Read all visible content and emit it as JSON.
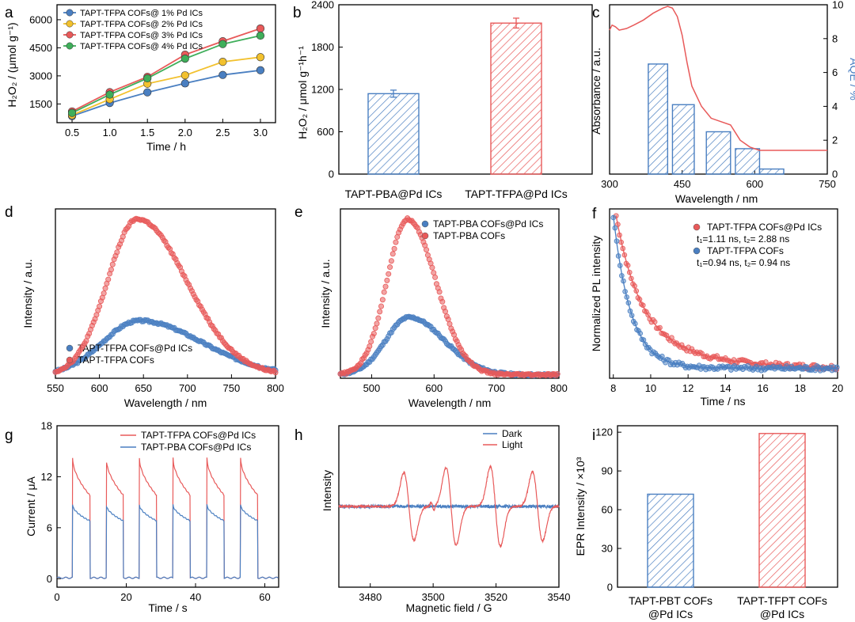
{
  "colors": {
    "blue": "#4a7fc1",
    "red": "#e85a5a",
    "yellow": "#f2c12e",
    "green": "#3fae5a"
  },
  "chart_data": [
    {
      "id": "a",
      "panel": "a",
      "type": "line",
      "xlabel": "Time / h",
      "ylabel": "H₂O₂ / (μmol g⁻¹)",
      "xlim": [
        0.3,
        3.2
      ],
      "ylim": [
        500,
        6800
      ],
      "xticks": [
        "0.5",
        "1.0",
        "1.5",
        "2.0",
        "2.5",
        "3.0"
      ],
      "xtick_vals": [
        0.5,
        1.0,
        1.5,
        2.0,
        2.5,
        3.0
      ],
      "yticks": [
        "1500",
        "3000",
        "4500",
        "6000"
      ],
      "ytick_vals": [
        1500,
        3000,
        4500,
        6000
      ],
      "x": [
        0.5,
        1.0,
        1.5,
        2.0,
        2.5,
        3.0
      ],
      "series": [
        {
          "name": "TAPT-TFPA COFs@ 1% Pd ICs",
          "color": "#4a7fc1",
          "values": [
            850,
            1550,
            2120,
            2600,
            3050,
            3300
          ]
        },
        {
          "name": "TAPT-TFPA COFs@ 2% Pd ICs",
          "color": "#f2c12e",
          "values": [
            900,
            1750,
            2580,
            3030,
            3750,
            4000
          ]
        },
        {
          "name": "TAPT-TFPA COFs@ 3% Pd ICs",
          "color": "#e85a5a",
          "values": [
            1100,
            2130,
            2950,
            4130,
            4850,
            5530
          ]
        },
        {
          "name": "TAPT-TFPA COFs@ 4% Pd ICs",
          "color": "#3fae5a",
          "values": [
            1020,
            2000,
            2870,
            3920,
            4700,
            5150
          ]
        }
      ]
    },
    {
      "id": "b",
      "panel": "b",
      "type": "bar",
      "ylabel": "H₂O₂ / μmol g⁻¹h⁻¹",
      "ylim": [
        0,
        2400
      ],
      "yticks": [
        "0",
        "600",
        "1200",
        "1800",
        "2400"
      ],
      "ytick_vals": [
        0,
        600,
        1200,
        1800,
        2400
      ],
      "categories": [
        "TAPT-PBA@Pd ICs",
        "TAPT-TFPA@Pd ICs"
      ],
      "values": [
        1140,
        2140
      ],
      "errors": [
        50,
        70
      ],
      "colors": [
        "#4a7fc1",
        "#e85a5a"
      ]
    },
    {
      "id": "c",
      "panel": "c",
      "type": "bar",
      "xlabel": "Wavelength / nm",
      "ylabel": "Absorbance / a.u.",
      "ylabel2": "AQE / %",
      "xlim": [
        300,
        750
      ],
      "ylim2": [
        0,
        10
      ],
      "xticks": [
        "300",
        "450",
        "600",
        "750"
      ],
      "xtick_vals": [
        300,
        450,
        600,
        750
      ],
      "yticks2": [
        "0",
        "2",
        "4",
        "6",
        "8",
        "10"
      ],
      "ytick_vals2": [
        0,
        2,
        4,
        6,
        8,
        10
      ],
      "bars": [
        {
          "x0": 380,
          "x1": 420,
          "value": 6.5
        },
        {
          "x0": 430,
          "x1": 475,
          "value": 4.1
        },
        {
          "x0": 500,
          "x1": 550,
          "value": 2.5
        },
        {
          "x0": 560,
          "x1": 610,
          "value": 1.5
        },
        {
          "x0": 610,
          "x1": 660,
          "value": 0.3
        }
      ],
      "absorbance": {
        "x": [
          300,
          305,
          312,
          320,
          335,
          350,
          370,
          390,
          410,
          420,
          430,
          440,
          450,
          460,
          470,
          490,
          510,
          530,
          550,
          570,
          590,
          610,
          650,
          700,
          750
        ],
        "y": [
          0.85,
          0.88,
          0.87,
          0.85,
          0.86,
          0.88,
          0.91,
          0.95,
          0.98,
          0.99,
          0.98,
          0.93,
          0.82,
          0.66,
          0.52,
          0.4,
          0.33,
          0.31,
          0.29,
          0.2,
          0.16,
          0.14,
          0.14,
          0.14,
          0.14
        ]
      }
    },
    {
      "id": "d",
      "panel": "d",
      "type": "scatter",
      "xlabel": "Wavelength / nm",
      "ylabel": "Intensity  / a.u.",
      "xlim": [
        550,
        800
      ],
      "xticks": [
        "550",
        "600",
        "650",
        "700",
        "750",
        "800"
      ],
      "xtick_vals": [
        550,
        600,
        650,
        700,
        750,
        800
      ],
      "series": [
        {
          "name": "TAPT-TFPA COFs@Pd ICs",
          "color": "#4a7fc1",
          "peak": 645,
          "amp": 0.32,
          "base": 0.02,
          "wl": 55,
          "wr": 95
        },
        {
          "name": "TAPT-TFPA COFs",
          "color": "#e85a5a",
          "peak": 643,
          "amp": 0.92,
          "base": 0.02,
          "wl": 45,
          "wr": 75
        }
      ]
    },
    {
      "id": "e",
      "panel": "e",
      "type": "scatter",
      "xlabel": "Wavelength / nm",
      "ylabel": "Intensity  / a.u.",
      "xlim": [
        450,
        800
      ],
      "xticks": [
        "500",
        "600",
        "700",
        "800"
      ],
      "xtick_vals": [
        500,
        600,
        700,
        800
      ],
      "series": [
        {
          "name": "TAPT-PBA COFs@Pd ICs",
          "color": "#4a7fc1",
          "peak": 560,
          "amp": 0.34,
          "base": 0.02,
          "wl": 50,
          "wr": 75
        },
        {
          "name": "TAPT-PBA COFs",
          "color": "#e85a5a",
          "peak": 558,
          "amp": 0.92,
          "base": 0.02,
          "wl": 45,
          "wr": 60
        }
      ]
    },
    {
      "id": "f",
      "panel": "f",
      "type": "scatter",
      "xlabel": "Time / ns",
      "ylabel": "Normalized PL intensity",
      "xlim": [
        7.8,
        20
      ],
      "xticks": [
        "8",
        "10",
        "12",
        "14",
        "16",
        "18",
        "20"
      ],
      "xtick_vals": [
        8,
        10,
        12,
        14,
        16,
        18,
        20
      ],
      "series": [
        {
          "name": "TAPT-TFPA COFs@Pd ICs",
          "note": "t₁=1.11 ns, t₂= 2.88 ns",
          "color": "#e85a5a",
          "t0": 8.15,
          "tau1": 1.11,
          "tau2": 2.88
        },
        {
          "name": "TAPT-TFPA COFs",
          "note": "t₁=0.94 ns, t₂= 0.94 ns",
          "color": "#4a7fc1",
          "t0": 8.0,
          "tau1": 0.94,
          "tau2": 0.94
        }
      ]
    },
    {
      "id": "g",
      "panel": "g",
      "type": "line",
      "xlabel": "Time / s",
      "ylabel": "Current / μA",
      "xlim": [
        0,
        64
      ],
      "ylim": [
        -1,
        18
      ],
      "xticks": [
        "0",
        "20",
        "40",
        "60"
      ],
      "xtick_vals": [
        0,
        20,
        40,
        60
      ],
      "yticks": [
        "0",
        "6",
        "12",
        "18"
      ],
      "ytick_vals": [
        0,
        6,
        12,
        18
      ],
      "on_times": [
        4.5,
        14.2,
        23.8,
        33.5,
        43.3,
        53.0
      ],
      "on_duration": 5.0,
      "series": [
        {
          "name": "TAPT-TFPA COFs@Pd ICs",
          "color": "#e85a5a",
          "peak": 14.2,
          "plateau": 9.8
        },
        {
          "name": "TAPT-PBA COFs@Pd ICs",
          "color": "#4a7fc1",
          "peak": 8.7,
          "plateau": 6.8
        }
      ]
    },
    {
      "id": "h",
      "panel": "h",
      "type": "line",
      "xlabel": "Magnetic field / G",
      "ylabel": "Intensity",
      "xlim": [
        3470,
        3540
      ],
      "xticks": [
        "3480",
        "3500",
        "3520",
        "3540"
      ],
      "xtick_vals": [
        3480,
        3500,
        3520,
        3540
      ],
      "series": [
        {
          "name": "Dark",
          "color": "#4a7fc1"
        },
        {
          "name": "Light",
          "color": "#e85a5a",
          "centers": [
            3492.3,
            3505.7,
            3519.8,
            3533.2
          ],
          "amps": [
            1,
            1.15,
            1.18,
            1.02
          ]
        }
      ]
    },
    {
      "id": "i",
      "panel": "i",
      "type": "bar",
      "ylabel": "EPR Intensity / ×10³",
      "ylim": [
        0,
        125
      ],
      "yticks": [
        "0",
        "30",
        "60",
        "90",
        "120"
      ],
      "ytick_vals": [
        0,
        30,
        60,
        90,
        120
      ],
      "categories": [
        [
          "TAPT-PBT COFs",
          "@Pd ICs"
        ],
        [
          "TAPT-TFPT COFs",
          "@Pd ICs"
        ]
      ],
      "values": [
        72,
        119
      ],
      "colors": [
        "#4a7fc1",
        "#e85a5a"
      ]
    }
  ]
}
